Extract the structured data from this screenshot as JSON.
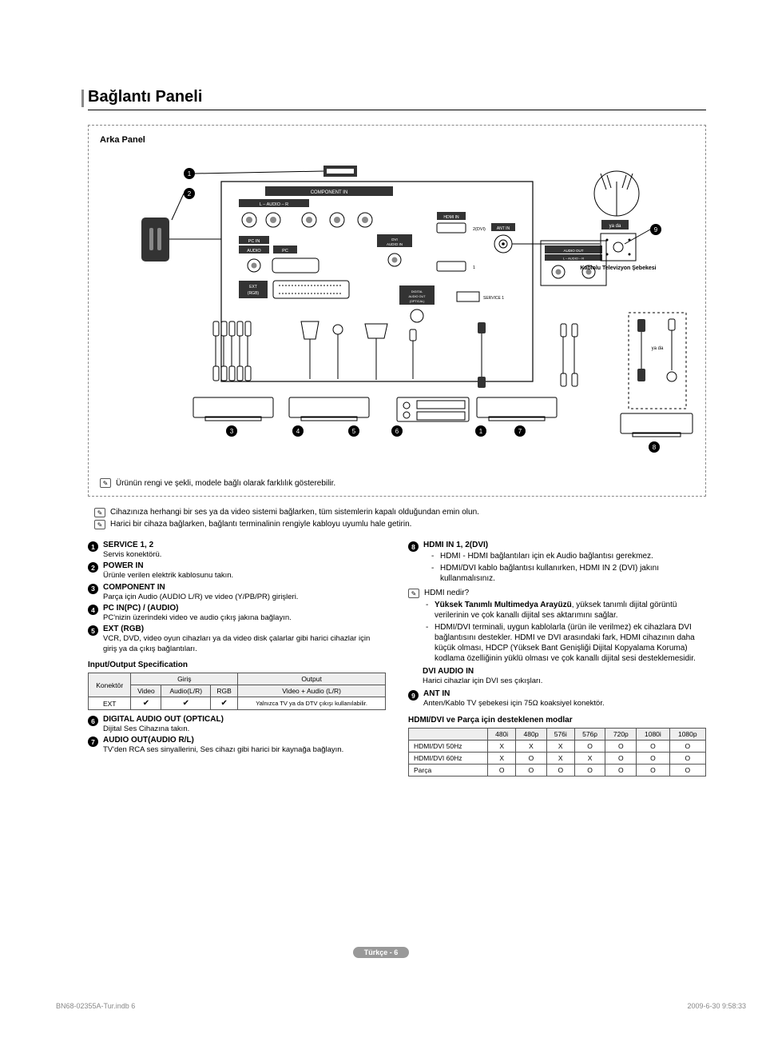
{
  "title": "Bağlantı Paneli",
  "diagram": {
    "title": "Arka Panel",
    "labels": {
      "service": "SERVICE",
      "component_in": "COMPONENT IN",
      "audio_l": "L – AUDIO – R",
      "pc_in": "PC IN",
      "audio": "AUDIO",
      "pc": "PC",
      "ext_rgb": "EXT (RGB)",
      "dvi_audio_in": "DVI AUDIO IN",
      "hdmi_in": "HDMI IN",
      "ant_in": "ANT IN",
      "audio_out": "AUDIO OUT",
      "digital_audio_out": "DIGITAL AUDIO OUT (OPTICAL)",
      "service1": "SERVICE 1",
      "or": "ya da",
      "cable_tv": "Kablolu Televizyon Şebekesi"
    },
    "note": "Ürünün rengi ve şekli, modele bağlı olarak farklılık gösterebilir."
  },
  "global_notes": [
    "Cihazınıza herhangi bir ses ya da video sistemi bağlarken, tüm sistemlerin kapalı olduğundan emin olun.",
    "Harici bir cihaza bağlarken, bağlantı terminalinin rengiyle kabloyu uyumlu hale getirin."
  ],
  "left_items": [
    {
      "n": "1",
      "title": "SERVICE 1, 2",
      "desc": "Servis konektörü."
    },
    {
      "n": "2",
      "title": "POWER IN",
      "desc": "Ürünle verilen elektrik kablosunu takın."
    },
    {
      "n": "3",
      "title": "COMPONENT IN",
      "desc": "Parça için Audio (AUDIO L/R) ve video (Y/PB/PR) girişleri."
    },
    {
      "n": "4",
      "title": "PC IN(PC) / (AUDIO)",
      "desc": "PC'nizin üzerindeki video ve audio çıkış jakına bağlayın."
    },
    {
      "n": "5",
      "title": "EXT (RGB)",
      "desc": "VCR, DVD, video oyun cihazları ya da video disk çalarlar gibi harici cihazlar için giriş ya da çıkış bağlantıları."
    }
  ],
  "io_spec": {
    "title": "Input/Output Specification",
    "headers": {
      "connector": "Konektör",
      "input": "Giriş",
      "output": "Output",
      "video": "Video",
      "audio_lr": "Audio(L/R)",
      "rgb": "RGB",
      "video_audio_lr": "Video + Audio (L/R)"
    },
    "row": {
      "name": "EXT",
      "video": "✔",
      "audio": "✔",
      "rgb": "✔",
      "out": "Yalnızca TV ya da DTV çıkışı kullanılabilir."
    }
  },
  "left_items2": [
    {
      "n": "6",
      "title": "DIGITAL AUDIO OUT (OPTICAL)",
      "desc": "Dijital Ses Cihazına takın."
    },
    {
      "n": "7",
      "title": "AUDIO OUT(AUDIO R/L)",
      "desc": "TV'den RCA ses sinyallerini, Ses cihazı gibi harici bir kaynağa bağlayın."
    }
  ],
  "right": {
    "item8": {
      "n": "8",
      "title": "HDMI IN 1, 2(DVI)",
      "bullets": [
        "HDMI - HDMI bağlantıları için ek Audio bağlantısı gerekmez.",
        "HDMI/DVI kablo bağlantısı kullanırken, HDMI IN 2 (DVI) jakını kullanmalısınız."
      ],
      "hdmi_q": "HDMI nedir?",
      "hdmi_bullets": [
        {
          "bold": "Yüksek Tanımlı Multimedya Arayüzü",
          "rest": ", yüksek tanımlı dijital görüntü verilerinin ve çok kanallı dijital ses aktarımını sağlar."
        },
        {
          "bold": "",
          "rest": "HDMI/DVI terminali, uygun kablolarla (ürün ile verilmez) ek cihazlara DVI bağlantısını destekler. HDMI ve DVI arasındaki fark, HDMI cihazının daha küçük olması, HDCP (Yüksek Bant Genişliği Dijital Kopyalama Koruma) kodlama özelliğinin yüklü olması ve çok kanallı dijital sesi desteklemesidir."
        }
      ],
      "dvi_title": "DVI AUDIO IN",
      "dvi_desc": "Harici cihazlar için DVI ses çıkışları."
    },
    "item9": {
      "n": "9",
      "title": "ANT IN",
      "desc": "Anten/Kablo TV şebekesi için 75Ω koaksiyel konektör."
    },
    "modes_title": "HDMI/DVI ve Parça için desteklenen modlar",
    "modes": {
      "cols": [
        "",
        "480i",
        "480p",
        "576i",
        "576p",
        "720p",
        "1080i",
        "1080p"
      ],
      "rows": [
        [
          "HDMI/DVI 50Hz",
          "X",
          "X",
          "X",
          "O",
          "O",
          "O",
          "O"
        ],
        [
          "HDMI/DVI 60Hz",
          "X",
          "O",
          "X",
          "X",
          "O",
          "O",
          "O"
        ],
        [
          "Parça",
          "O",
          "O",
          "O",
          "O",
          "O",
          "O",
          "O"
        ]
      ]
    }
  },
  "footer": "Türkçe - 6",
  "print_left": "BN68-02355A-Tur.indb   6",
  "print_right": "2009-6-30   9:58:33"
}
